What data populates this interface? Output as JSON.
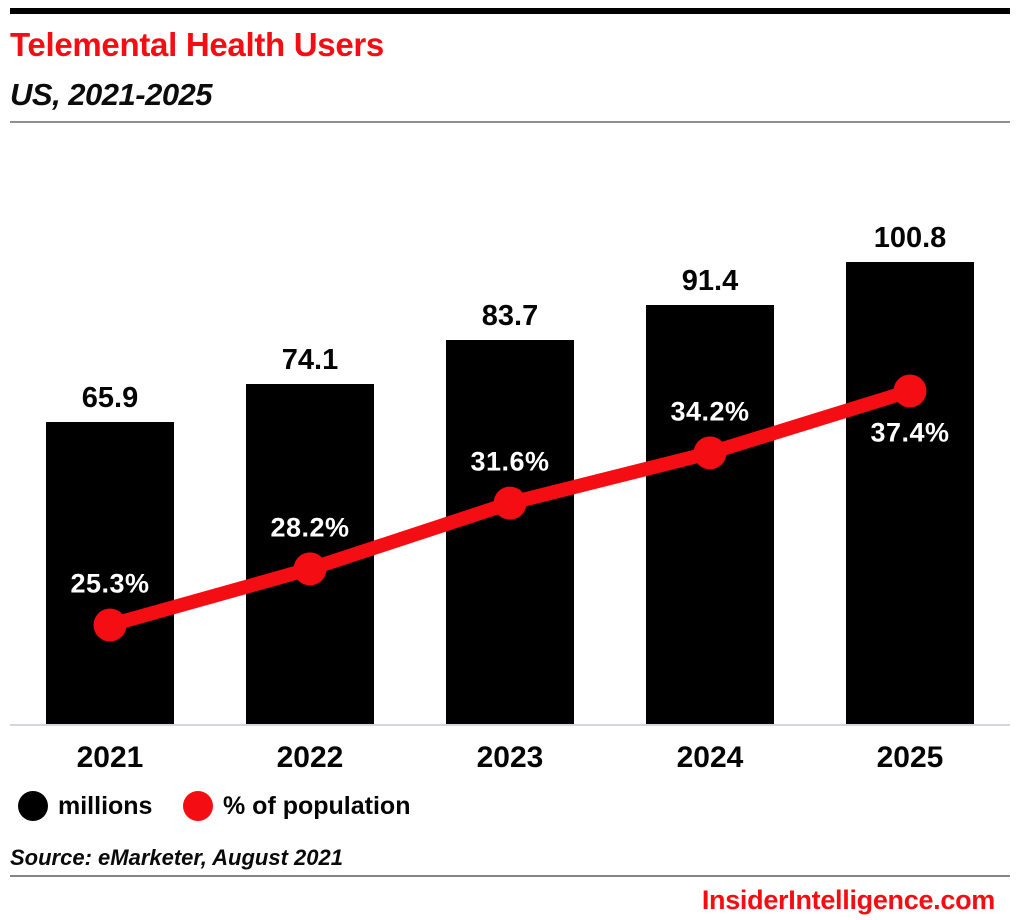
{
  "header": {
    "title": "Telemental Health Users",
    "subtitle": "US, 2021-2025"
  },
  "colors": {
    "accent_red": "#F40D12",
    "bar_black": "#000000",
    "axis_line": "#d2d6e0",
    "divider_gray": "#8f8f8f"
  },
  "chart_data": {
    "type": "bar",
    "title": "Telemental Health Users",
    "subtitle": "US, 2021-2025",
    "categories": [
      "2021",
      "2022",
      "2023",
      "2024",
      "2025"
    ],
    "series": [
      {
        "name": "millions",
        "type": "bar",
        "color": "#000000",
        "values": [
          65.9,
          74.1,
          83.7,
          91.4,
          100.8
        ],
        "data_labels": [
          "65.9",
          "74.1",
          "83.7",
          "91.4",
          "100.8"
        ]
      },
      {
        "name": "% of population",
        "type": "line",
        "color": "#F40D12",
        "values": [
          25.3,
          28.2,
          31.6,
          34.2,
          37.4
        ],
        "data_labels": [
          "25.3%",
          "28.2%",
          "31.6%",
          "34.2%",
          "37.4%"
        ]
      }
    ],
    "legend_position": "bottom",
    "grid": false,
    "axes": {
      "y_axis_shown": false,
      "x_baseline_shown": true
    }
  },
  "legend": {
    "items": [
      {
        "label": "millions",
        "color": "#000000"
      },
      {
        "label": "% of population",
        "color": "#F40D12"
      }
    ]
  },
  "footer": {
    "source": "Source: eMarketer, August 2021",
    "site": "InsiderIntelligence.com"
  }
}
